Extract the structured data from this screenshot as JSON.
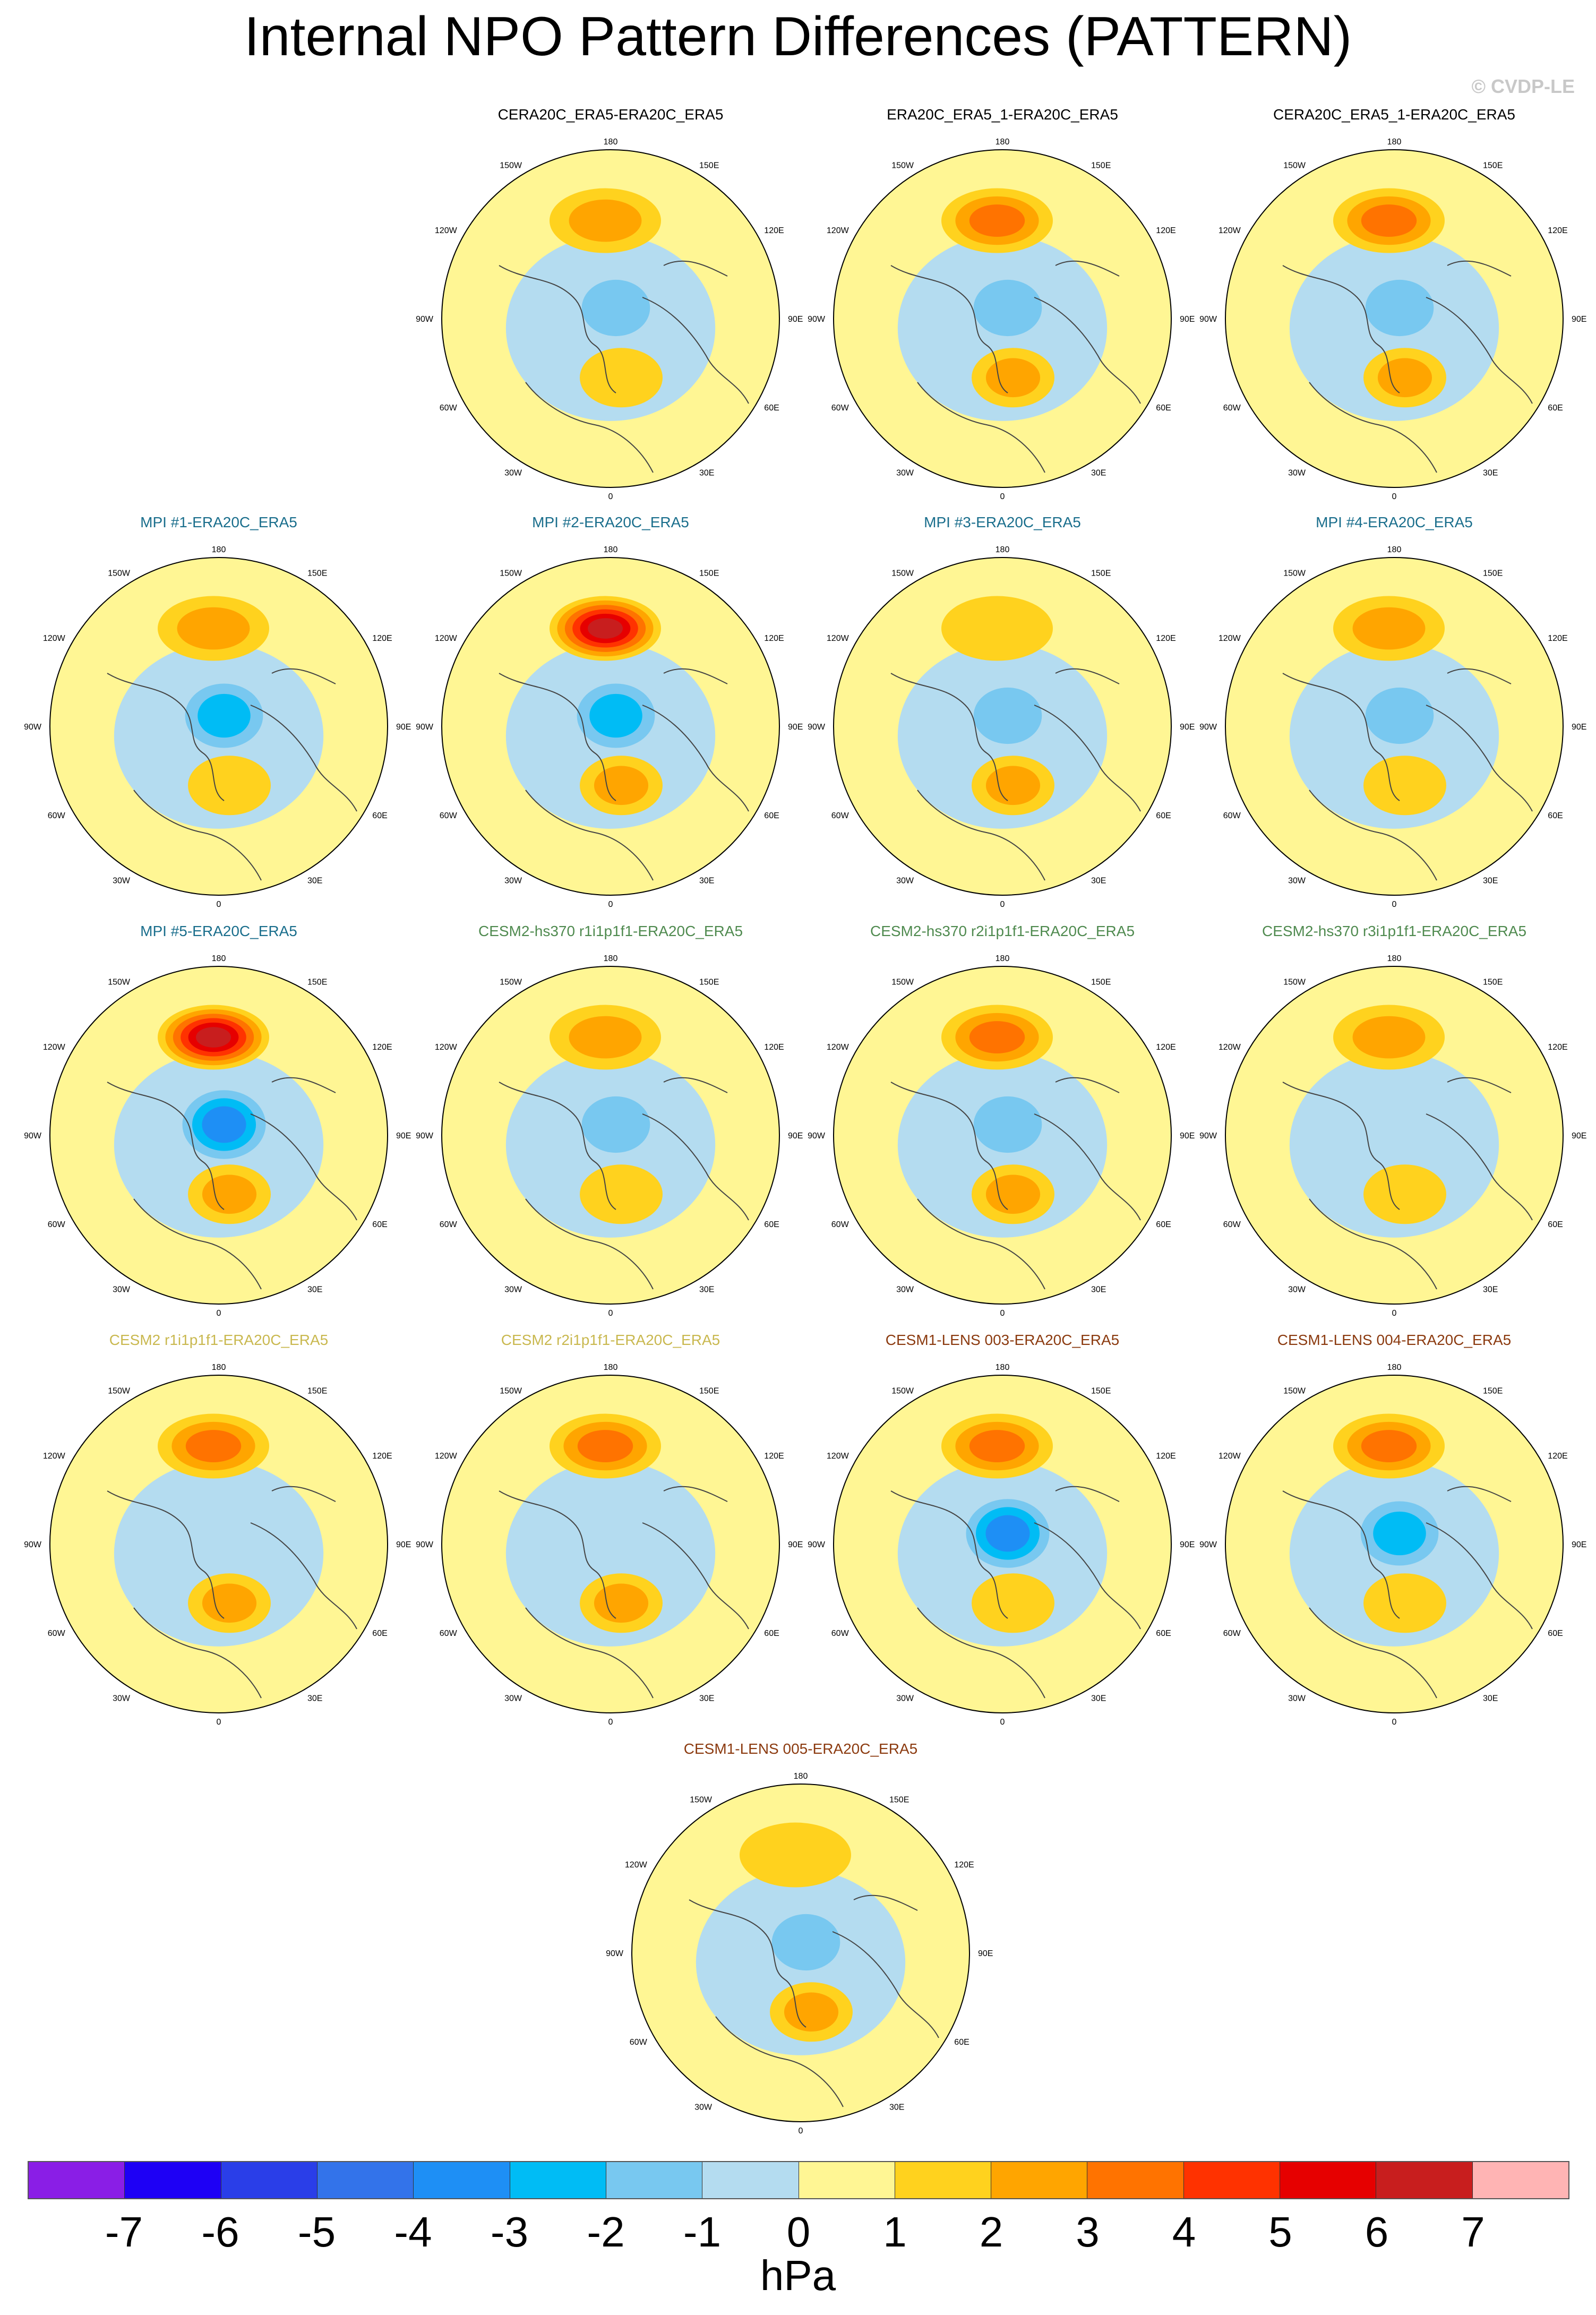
{
  "title": "Internal NPO Pattern Differences (PATTERN)",
  "credit": "© CVDP-LE",
  "lon_labels": [
    "180",
    "150E",
    "120E",
    "90E",
    "60E",
    "30E",
    "0",
    "30W",
    "60W",
    "90W",
    "120W",
    "150W"
  ],
  "panels": [
    {
      "title": "CERA20C_ERA5-ERA20C_ERA5",
      "color": "#000000",
      "pacific_max": 2,
      "arctic_min": -2,
      "atlantic_max": 1
    },
    {
      "title": "ERA20C_ERA5_1-ERA20C_ERA5",
      "color": "#000000",
      "pacific_max": 3,
      "arctic_min": -2,
      "atlantic_max": 2
    },
    {
      "title": "CERA20C_ERA5_1-ERA20C_ERA5",
      "color": "#000000",
      "pacific_max": 3,
      "arctic_min": -2,
      "atlantic_max": 2
    },
    {
      "title": "MPI #1-ERA20C_ERA5",
      "color": "#1a6e8c",
      "pacific_max": 2,
      "arctic_min": -3,
      "atlantic_max": 1
    },
    {
      "title": "MPI #2-ERA20C_ERA5",
      "color": "#1a6e8c",
      "pacific_max": 6,
      "arctic_min": -3,
      "atlantic_max": 2
    },
    {
      "title": "MPI #3-ERA20C_ERA5",
      "color": "#1a6e8c",
      "pacific_max": 1,
      "arctic_min": -2,
      "atlantic_max": 2
    },
    {
      "title": "MPI #4-ERA20C_ERA5",
      "color": "#1a6e8c",
      "pacific_max": 2,
      "arctic_min": -2,
      "atlantic_max": 1
    },
    {
      "title": "MPI #5-ERA20C_ERA5",
      "color": "#1a6e8c",
      "pacific_max": 6,
      "arctic_min": -4,
      "atlantic_max": 2
    },
    {
      "title": "CESM2-hs370 r1i1p1f1-ERA20C_ERA5",
      "color": "#4f8a4f",
      "pacific_max": 2,
      "arctic_min": -2,
      "atlantic_max": 1
    },
    {
      "title": "CESM2-hs370 r2i1p1f1-ERA20C_ERA5",
      "color": "#4f8a4f",
      "pacific_max": 3,
      "arctic_min": -2,
      "atlantic_max": 2
    },
    {
      "title": "CESM2-hs370 r3i1p1f1-ERA20C_ERA5",
      "color": "#4f8a4f",
      "pacific_max": 2,
      "arctic_min": -1,
      "atlantic_max": 1
    },
    {
      "title": "CESM2 r1i1p1f1-ERA20C_ERA5",
      "color": "#c9b84f",
      "pacific_max": 3,
      "arctic_min": -1,
      "atlantic_max": 2
    },
    {
      "title": "CESM2 r2i1p1f1-ERA20C_ERA5",
      "color": "#c9b84f",
      "pacific_max": 3,
      "arctic_min": -1,
      "atlantic_max": 2
    },
    {
      "title": "CESM1-LENS 003-ERA20C_ERA5",
      "color": "#8b3a0f",
      "pacific_max": 3,
      "arctic_min": -4,
      "atlantic_max": 1
    },
    {
      "title": "CESM1-LENS 004-ERA20C_ERA5",
      "color": "#8b3a0f",
      "pacific_max": 3,
      "arctic_min": -3,
      "atlantic_max": 1
    },
    {
      "title": "CESM1-LENS 005-ERA20C_ERA5",
      "color": "#8b3a0f",
      "pacific_max": 1,
      "arctic_min": -2,
      "atlantic_max": 2
    }
  ],
  "colorbar": {
    "colors": [
      "#8a1ee6",
      "#1e00f5",
      "#2a3ee8",
      "#3373ea",
      "#1e8ff5",
      "#00bcf5",
      "#78c8f0",
      "#b4dcf0",
      "#fff694",
      "#ffd21e",
      "#ffa500",
      "#ff7300",
      "#ff3200",
      "#e60000",
      "#c81e1e",
      "#ffb4b4"
    ],
    "labels": [
      "-7",
      "-6",
      "-5",
      "-4",
      "-3",
      "-2",
      "-1",
      "0",
      "1",
      "2",
      "3",
      "4",
      "5",
      "6",
      "7"
    ],
    "units": "hPa"
  }
}
